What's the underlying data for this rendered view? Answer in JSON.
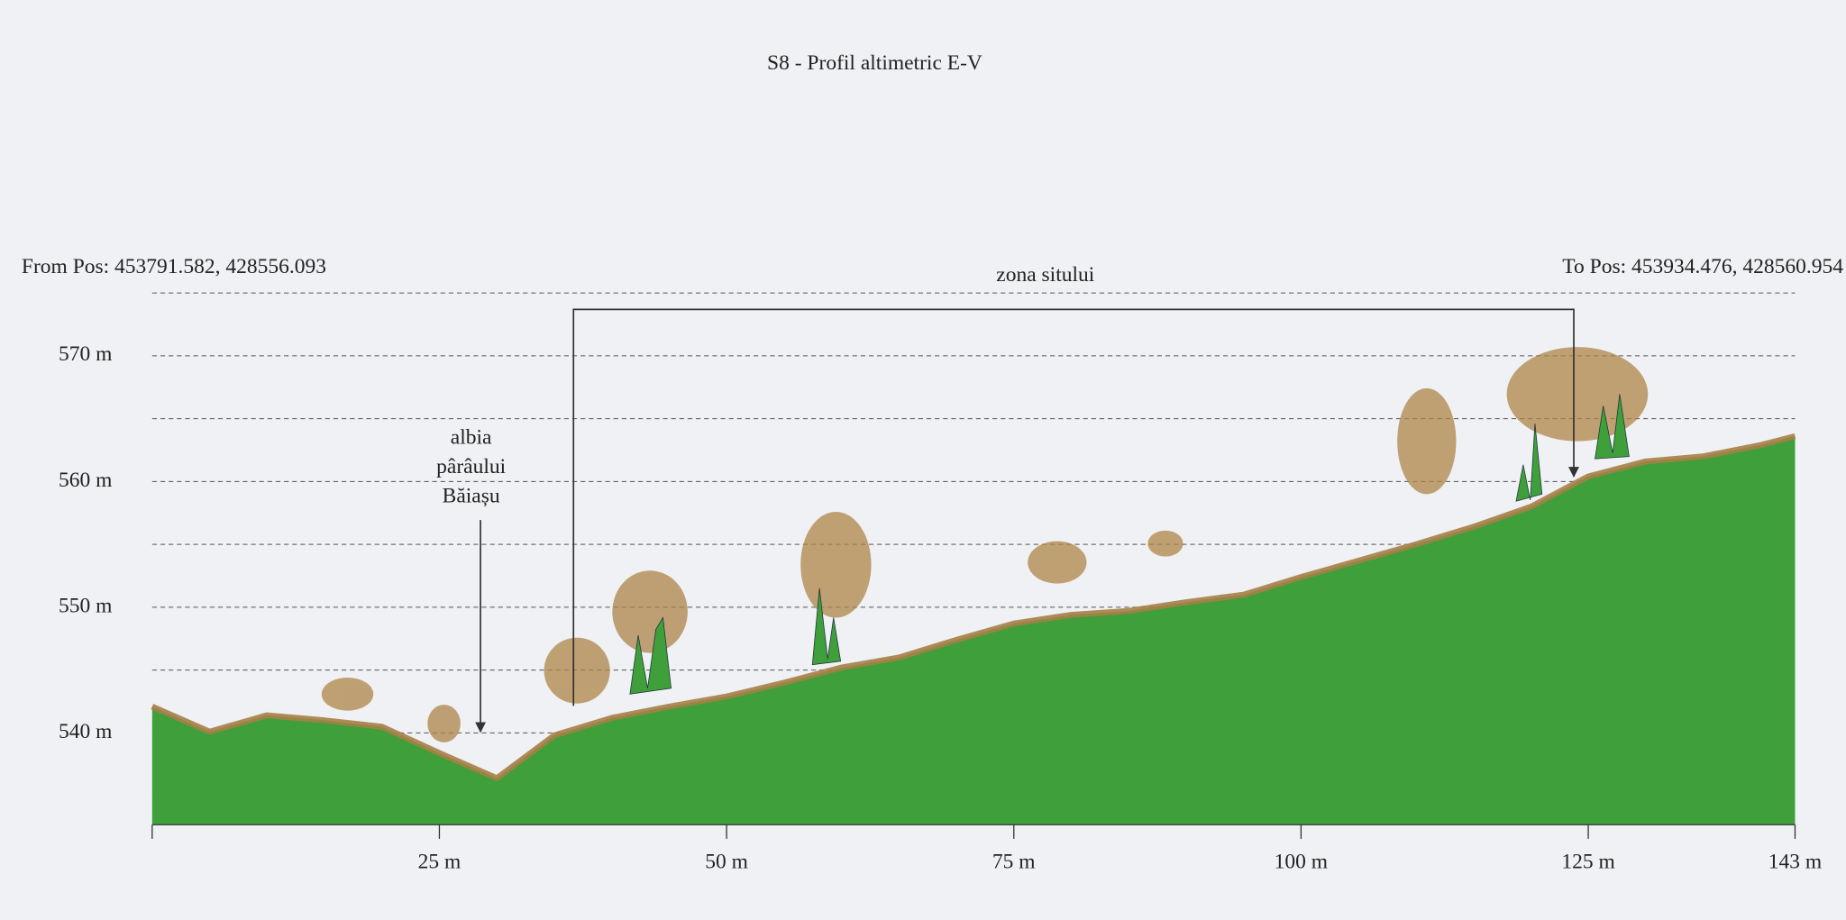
{
  "chart_data": {
    "type": "area",
    "title": "S8 - Profil altimetric E-V",
    "from_pos": "From Pos: 453791.582, 428556.093",
    "to_pos": "To Pos: 453934.476, 428560.954",
    "annotations": {
      "stream": [
        "albia",
        "pârâului",
        "Băiașu"
      ],
      "site": "zona sitului"
    },
    "x": [
      0,
      5,
      10,
      15,
      20,
      25,
      30,
      35,
      40,
      45,
      50,
      55,
      60,
      65,
      70,
      75,
      80,
      85,
      90,
      95,
      100,
      105,
      110,
      115,
      120,
      125,
      130,
      135,
      140,
      143
    ],
    "values": [
      542.1,
      540.1,
      541.4,
      541,
      540.5,
      538.4,
      536.4,
      539.8,
      541.2,
      542.1,
      542.9,
      544,
      545.2,
      546,
      547.4,
      548.7,
      549.4,
      549.7,
      550.4,
      551,
      552.4,
      553.7,
      555,
      556.4,
      558,
      560.4,
      561.6,
      562,
      562.9,
      563.6
    ],
    "color": "#3f9f3b",
    "surface_color": "#a57f47",
    "xlim": [
      0,
      143
    ],
    "xticks": [
      {
        "value": 25,
        "label": "25 m"
      },
      {
        "value": 50,
        "label": "50 m"
      },
      {
        "value": 75,
        "label": "75 m"
      },
      {
        "value": 100,
        "label": "100 m"
      },
      {
        "value": 125,
        "label": "125 m"
      },
      {
        "value": 143,
        "label": "143 m"
      }
    ],
    "ylim": [
      532.7,
      575
    ],
    "yticks": [
      {
        "value": 540,
        "label": "540 m"
      },
      {
        "value": 550,
        "label": "550 m"
      },
      {
        "value": 560,
        "label": "560 m"
      },
      {
        "value": 570,
        "label": "570 m"
      }
    ],
    "minor_yticks": [
      535,
      545,
      555,
      565,
      575
    ],
    "grid": true
  }
}
